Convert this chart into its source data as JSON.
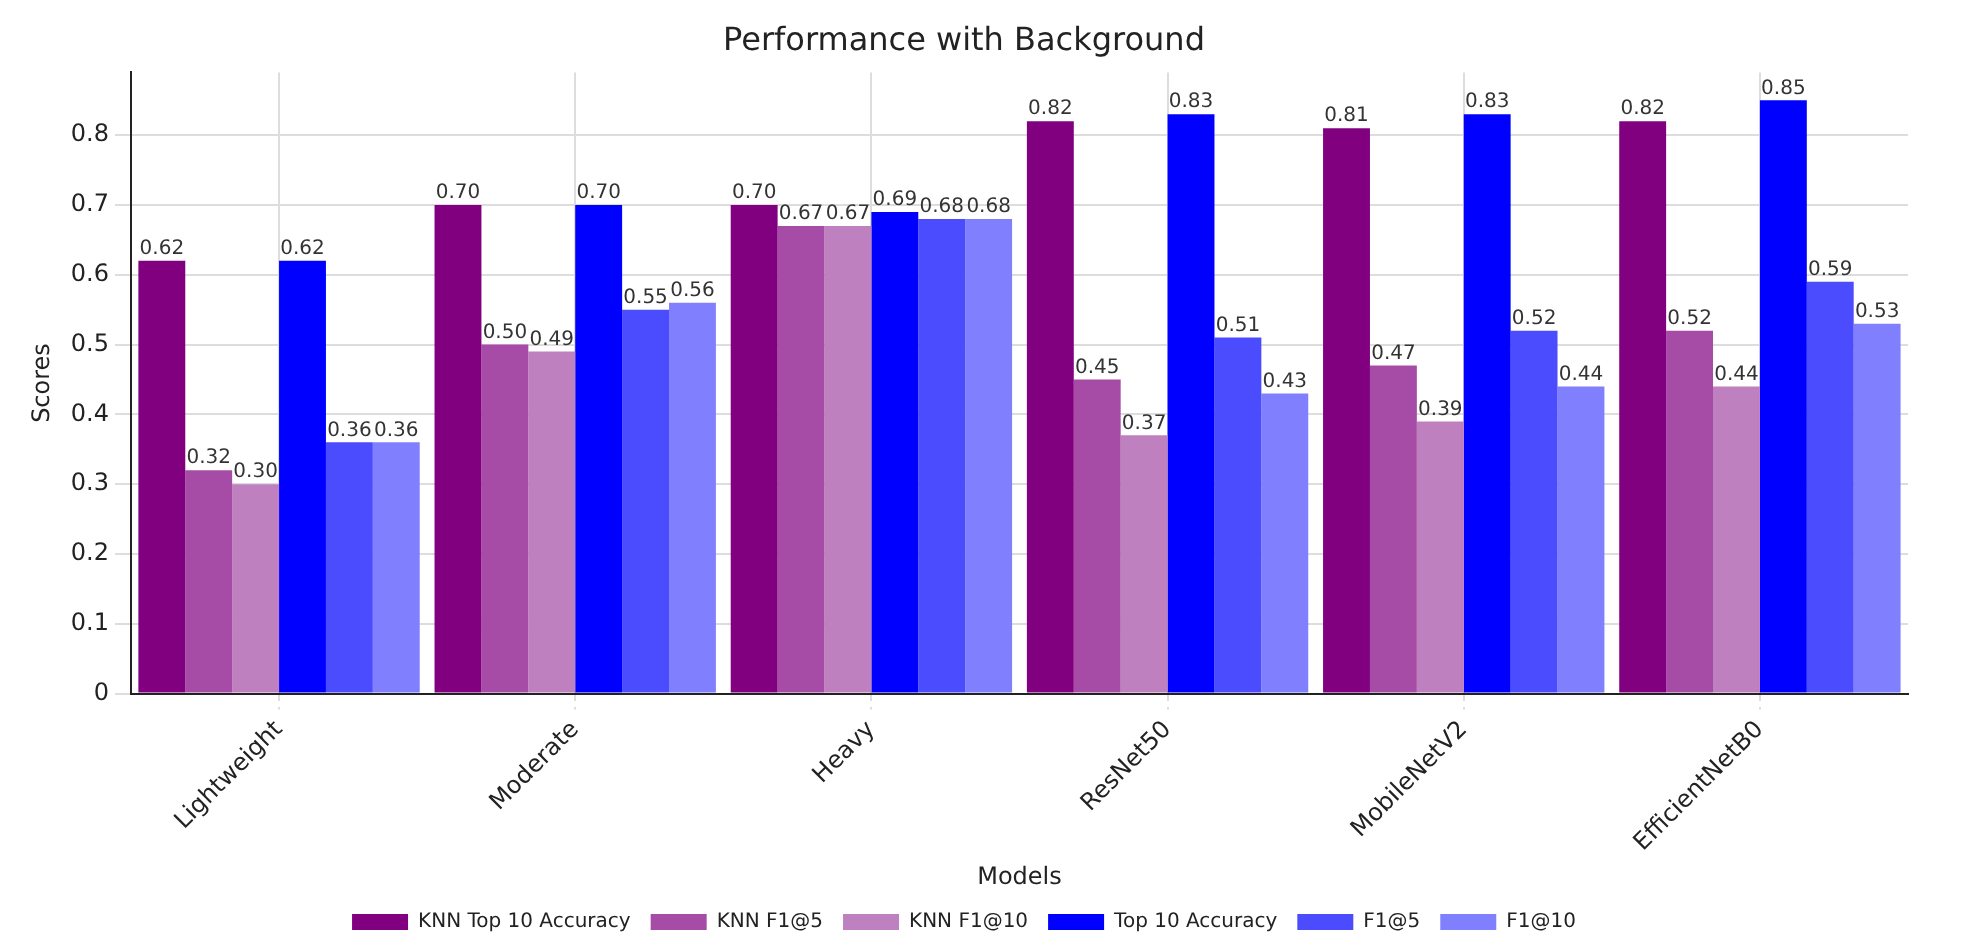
{
  "chart_data": {
    "type": "bar",
    "title": "Performance with Background",
    "xlabel": "Models",
    "ylabel": "Scores",
    "categories": [
      "Lightweight",
      "Moderate",
      "Heavy",
      "ResNet50",
      "MobileNetV2",
      "EfficientNetB0"
    ],
    "series": [
      {
        "name": "KNN Top 10 Accuracy",
        "color": "#800080",
        "values": [
          0.62,
          0.7,
          0.7,
          0.82,
          0.81,
          0.82
        ],
        "value_labels": [
          "0.62",
          "0.70",
          "0.70",
          "0.82",
          "0.81",
          "0.82"
        ]
      },
      {
        "name": "KNN F1@5",
        "color": "#a64ca6",
        "values": [
          0.32,
          0.5,
          0.67,
          0.45,
          0.47,
          0.52
        ],
        "value_labels": [
          "0.32",
          "0.50",
          "0.67",
          "0.45",
          "0.47",
          "0.52"
        ]
      },
      {
        "name": "KNN F1@10",
        "color": "#bf80bf",
        "values": [
          0.3,
          0.49,
          0.67,
          0.37,
          0.39,
          0.44
        ],
        "value_labels": [
          "0.30",
          "0.49",
          "0.67",
          "0.37",
          "0.39",
          "0.44"
        ]
      },
      {
        "name": "Top 10 Accuracy",
        "color": "#0000ff",
        "values": [
          0.62,
          0.7,
          0.69,
          0.83,
          0.83,
          0.85
        ],
        "value_labels": [
          "0.62",
          "0.70",
          "0.69",
          "0.83",
          "0.83",
          "0.85"
        ]
      },
      {
        "name": "F1@5",
        "color": "#4c4cff",
        "values": [
          0.36,
          0.55,
          0.68,
          0.51,
          0.52,
          0.59
        ],
        "value_labels": [
          "0.36",
          "0.55",
          "0.68",
          "0.51",
          "0.52",
          "0.59"
        ]
      },
      {
        "name": "F1@10",
        "color": "#8080ff",
        "values": [
          0.36,
          0.56,
          0.68,
          0.43,
          0.44,
          0.53
        ],
        "value_labels": [
          "0.36",
          "0.56",
          "0.68",
          "0.43",
          "0.44",
          "0.53"
        ]
      }
    ],
    "ylim": [
      0,
      0.89
    ],
    "yticks": [
      0,
      0.1,
      0.2,
      0.3,
      0.4,
      0.5,
      0.6,
      0.7,
      0.8
    ],
    "grid": true,
    "legend": "bottom"
  }
}
